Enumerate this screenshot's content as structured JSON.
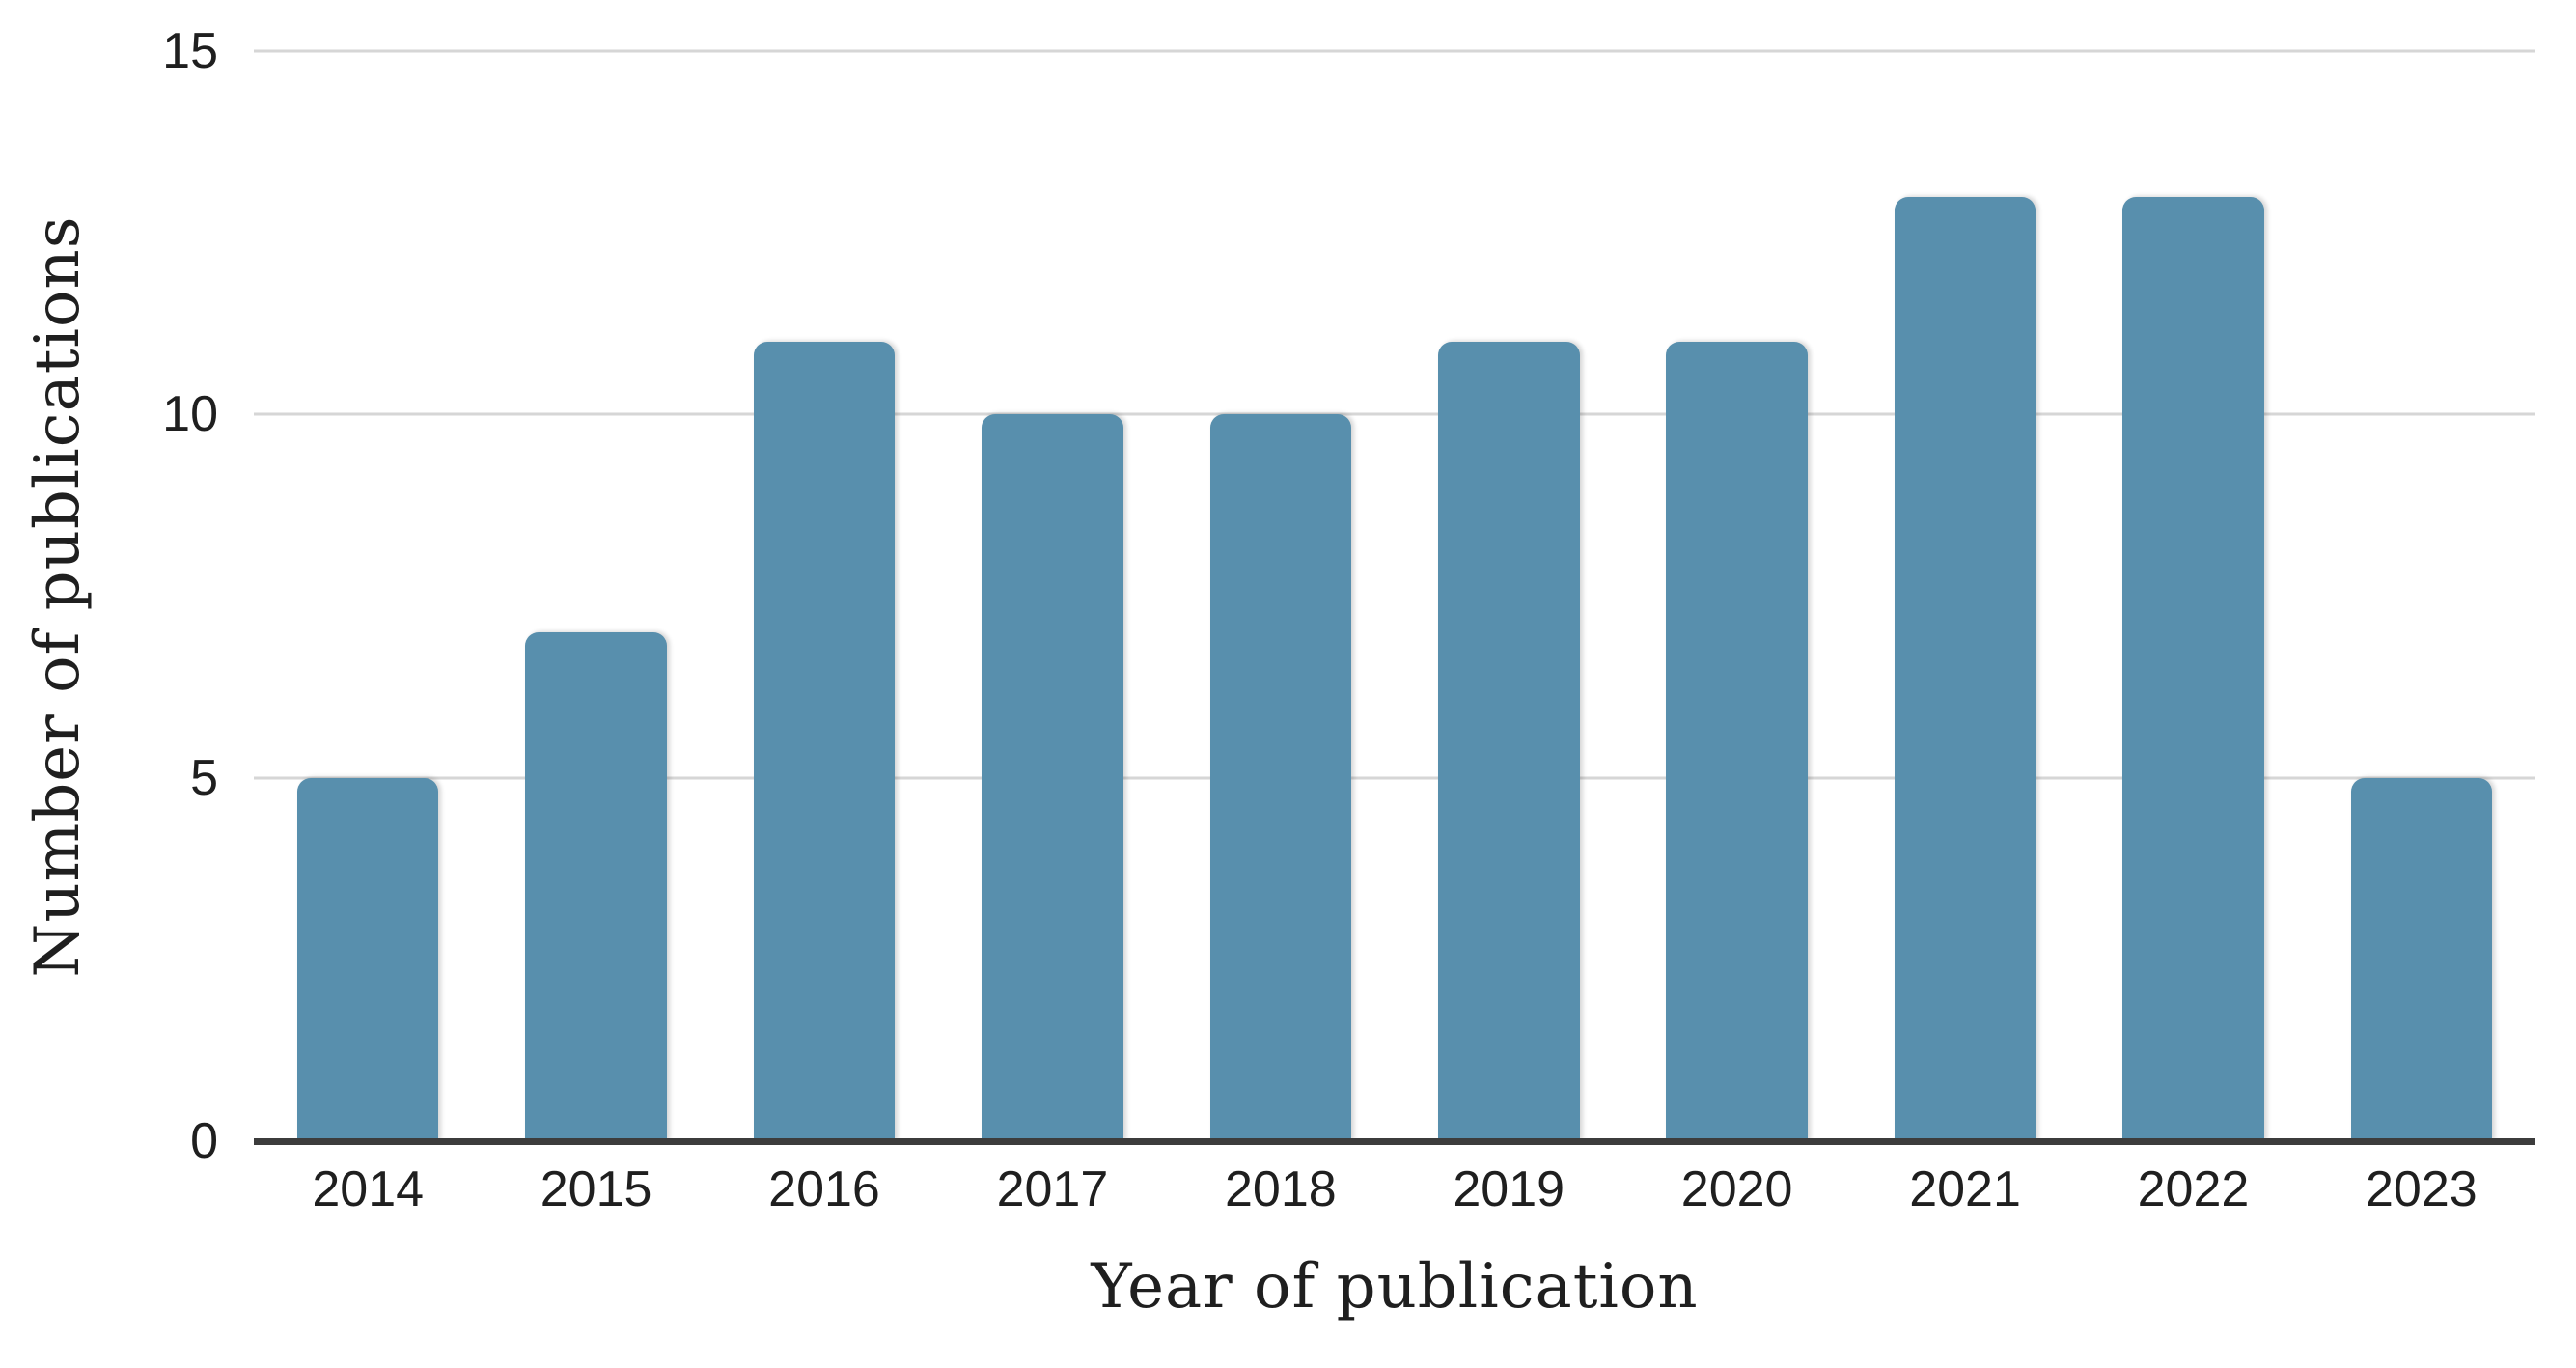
{
  "figure": {
    "background": "#ffffff"
  },
  "chart_data": {
    "type": "bar",
    "title": "",
    "categories": [
      "2014",
      "2015",
      "2016",
      "2017",
      "2018",
      "2019",
      "2020",
      "2021",
      "2022",
      "2023"
    ],
    "values": [
      5,
      7,
      11,
      10,
      10,
      11,
      11,
      13,
      13,
      5
    ],
    "xlabel": "Year of publication",
    "ylabel": "Number of publications",
    "ylim": [
      0,
      15
    ],
    "yticks": [
      0,
      5,
      10,
      15
    ],
    "grid": "horizontal-only",
    "legend": "none",
    "bar_color": "#588fad",
    "gridline_color": "#d6d6d6",
    "axis_line_color": "#3c3c3c",
    "text_color": "#1f1f1f"
  }
}
